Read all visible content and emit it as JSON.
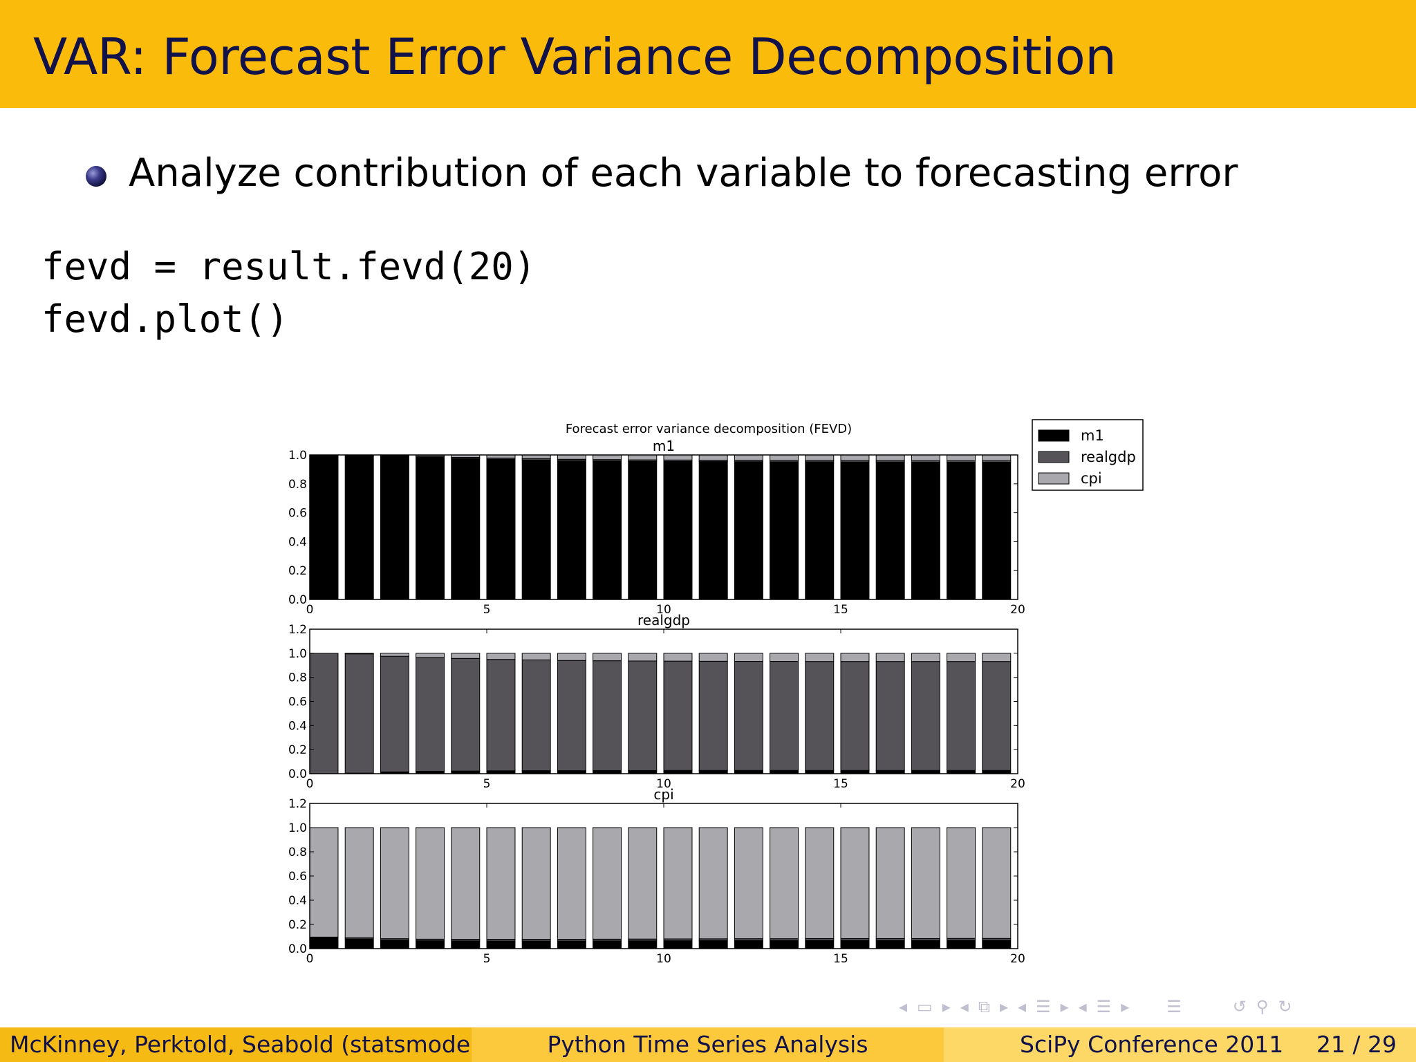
{
  "slide": {
    "title": "VAR: Forecast Error Variance Decomposition",
    "bullet": "Analyze contribution of each variable to forecasting error",
    "code_line1": "fevd = result.fevd(20)",
    "code_line2": "fevd.plot()"
  },
  "footer": {
    "authors": "McKinney, Perktold, Seabold  (statsmodels)",
    "talk": "Python Time Series Analysis",
    "conference": "SciPy Conference 2011",
    "page": "21 / 29"
  },
  "colors": {
    "title_bar": "#fbbb0b",
    "title_text": "#12124a",
    "m1": "#000000",
    "realgdp": "#555358",
    "cpi": "#a9a8ad"
  },
  "chart_data": {
    "type": "bar",
    "stacked": true,
    "suptitle": "Forecast error variance decomposition (FEVD)",
    "legend": {
      "placement": "top-right",
      "entries": [
        "m1",
        "realgdp",
        "cpi"
      ]
    },
    "x": [
      0,
      1,
      2,
      3,
      4,
      5,
      6,
      7,
      8,
      9,
      10,
      11,
      12,
      13,
      14,
      15,
      16,
      17,
      18,
      19
    ],
    "xticks": [
      "0",
      "5",
      "10",
      "15",
      "20"
    ],
    "xlim": [
      0,
      20
    ],
    "panels": [
      {
        "title": "m1",
        "ylim": [
          0,
          1.0
        ],
        "yticks": [
          "0.0",
          "0.2",
          "0.4",
          "0.6",
          "0.8",
          "1.0"
        ],
        "series": [
          {
            "name": "m1",
            "values": [
              1.0,
              0.995,
              0.99,
              0.985,
              0.975,
              0.97,
              0.965,
              0.96,
              0.958,
              0.956,
              0.955,
              0.954,
              0.953,
              0.952,
              0.952,
              0.951,
              0.951,
              0.95,
              0.95,
              0.95
            ]
          },
          {
            "name": "realgdp",
            "values": [
              0.0,
              0.003,
              0.005,
              0.007,
              0.008,
              0.009,
              0.01,
              0.01,
              0.01,
              0.01,
              0.01,
              0.01,
              0.01,
              0.01,
              0.01,
              0.01,
              0.01,
              0.01,
              0.01,
              0.01
            ]
          },
          {
            "name": "cpi",
            "values": [
              0.0,
              0.002,
              0.005,
              0.008,
              0.017,
              0.021,
              0.025,
              0.03,
              0.032,
              0.034,
              0.035,
              0.036,
              0.037,
              0.038,
              0.038,
              0.039,
              0.039,
              0.04,
              0.04,
              0.04
            ]
          }
        ]
      },
      {
        "title": "realgdp",
        "ylim": [
          0,
          1.2
        ],
        "yticks": [
          "0.0",
          "0.2",
          "0.4",
          "0.6",
          "0.8",
          "1.0",
          "1.2"
        ],
        "series": [
          {
            "name": "m1",
            "values": [
              0.0,
              0.005,
              0.015,
              0.02,
              0.022,
              0.024,
              0.025,
              0.025,
              0.026,
              0.026,
              0.027,
              0.027,
              0.027,
              0.027,
              0.027,
              0.027,
              0.027,
              0.027,
              0.027,
              0.027
            ]
          },
          {
            "name": "realgdp",
            "values": [
              1.0,
              0.99,
              0.96,
              0.945,
              0.935,
              0.925,
              0.92,
              0.915,
              0.912,
              0.91,
              0.908,
              0.907,
              0.906,
              0.906,
              0.905,
              0.905,
              0.905,
              0.905,
              0.905,
              0.905
            ]
          },
          {
            "name": "cpi",
            "values": [
              0.0,
              0.005,
              0.025,
              0.035,
              0.043,
              0.051,
              0.055,
              0.06,
              0.062,
              0.064,
              0.065,
              0.066,
              0.067,
              0.067,
              0.068,
              0.068,
              0.068,
              0.068,
              0.068,
              0.068
            ]
          }
        ]
      },
      {
        "title": "cpi",
        "ylim": [
          0,
          1.2
        ],
        "yticks": [
          "0.0",
          "0.2",
          "0.4",
          "0.6",
          "0.8",
          "1.0",
          "1.2"
        ],
        "series": [
          {
            "name": "m1",
            "values": [
              0.09,
              0.08,
              0.07,
              0.065,
              0.063,
              0.062,
              0.062,
              0.062,
              0.063,
              0.064,
              0.065,
              0.066,
              0.067,
              0.067,
              0.068,
              0.068,
              0.068,
              0.068,
              0.069,
              0.069
            ]
          },
          {
            "name": "realgdp",
            "values": [
              0.005,
              0.01,
              0.012,
              0.013,
              0.014,
              0.015,
              0.015,
              0.015,
              0.015,
              0.015,
              0.015,
              0.015,
              0.015,
              0.015,
              0.015,
              0.015,
              0.015,
              0.015,
              0.015,
              0.015
            ]
          },
          {
            "name": "cpi",
            "values": [
              0.905,
              0.91,
              0.918,
              0.922,
              0.923,
              0.923,
              0.923,
              0.923,
              0.922,
              0.921,
              0.92,
              0.919,
              0.918,
              0.918,
              0.917,
              0.917,
              0.917,
              0.917,
              0.916,
              0.916
            ]
          }
        ]
      }
    ]
  }
}
